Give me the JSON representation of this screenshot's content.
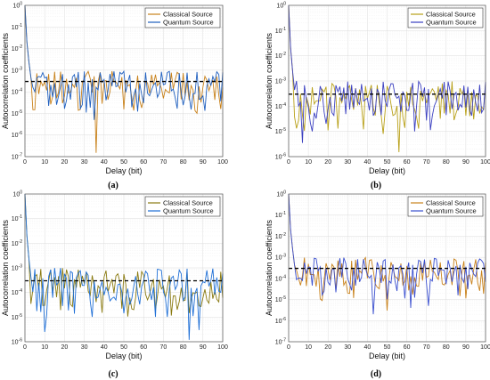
{
  "chart_data": [
    {
      "type": "line",
      "panel_label": "(a)",
      "xlabel": "Delay (bit)",
      "ylabel": "Autocorrelation coefficients",
      "xlim": [
        0,
        100
      ],
      "ylim_exponent": [
        -7,
        0
      ],
      "yscale": "log",
      "grid": true,
      "legend": "top-right",
      "threshold": 0.0003,
      "x_ticks": [
        "0",
        "10",
        "20",
        "30",
        "40",
        "50",
        "60",
        "70",
        "80",
        "90",
        "100"
      ],
      "y_ticks": [
        "10^-7",
        "10^-6",
        "10^-5",
        "10^-4",
        "10^-3",
        "10^-2",
        "10^-1",
        "10^0"
      ],
      "series": [
        {
          "name": "Classical Source",
          "color": "#c8811a",
          "dips": [
            [
              36,
              1.5e-07
            ],
            [
              14,
              6e-05
            ],
            [
              70,
              5e-05
            ]
          ],
          "seed": 11
        },
        {
          "name": "Quantum Source",
          "color": "#1f5fbf",
          "dips": [
            [
              35,
              5e-06
            ],
            [
              21,
              4e-05
            ],
            [
              60,
              3e-05
            ]
          ],
          "seed": 23
        }
      ]
    },
    {
      "type": "line",
      "panel_label": "(b)",
      "xlabel": "Delay (bit)",
      "ylabel": "Autocorrelation coefficients",
      "xlim": [
        0,
        100
      ],
      "ylim_exponent": [
        -6,
        0
      ],
      "yscale": "log",
      "grid": true,
      "legend": "top-right",
      "threshold": 0.0003,
      "x_ticks": [
        "0",
        "10",
        "20",
        "30",
        "40",
        "50",
        "60",
        "70",
        "80",
        "90",
        "100"
      ],
      "y_ticks": [
        "10^-6",
        "10^-5",
        "10^-4",
        "10^-3",
        "10^-2",
        "10^-1",
        "10^0"
      ],
      "series": [
        {
          "name": "Classical Source",
          "color": "#b8a018",
          "dips": [
            [
              56,
              1.5e-06
            ],
            [
              38,
              1.2e-05
            ],
            [
              48,
              8e-06
            ]
          ],
          "seed": 31
        },
        {
          "name": "Quantum Source",
          "color": "#3a3fc0",
          "dips": [
            [
              7,
              3.5e-06
            ],
            [
              19,
              2e-05
            ],
            [
              64,
              1e-05
            ]
          ],
          "seed": 47
        }
      ]
    },
    {
      "type": "line",
      "panel_label": "(c)",
      "xlabel": "Delay (bit)",
      "ylabel": "Autocorrelation coefficients",
      "xlim": [
        0,
        100
      ],
      "ylim_exponent": [
        -6,
        0
      ],
      "yscale": "log",
      "grid": true,
      "legend": "top-right",
      "threshold": 0.0003,
      "x_ticks": [
        "0",
        "10",
        "20",
        "30",
        "40",
        "50",
        "60",
        "70",
        "80",
        "90",
        "100"
      ],
      "y_ticks": [
        "10^-6",
        "10^-5",
        "10^-4",
        "10^-3",
        "10^-2",
        "10^-1",
        "10^0"
      ],
      "series": [
        {
          "name": "Classical Source",
          "color": "#8a7a10",
          "dips": [
            [
              39,
              1.5e-05
            ],
            [
              55,
              2e-05
            ],
            [
              66,
              2e-05
            ]
          ],
          "seed": 53
        },
        {
          "name": "Quantum Source",
          "color": "#1f6fd6",
          "dips": [
            [
              10,
              2.5e-06
            ],
            [
              83,
              1.2e-06
            ],
            [
              88,
              3e-06
            ]
          ],
          "seed": 67
        }
      ]
    },
    {
      "type": "line",
      "panel_label": "(d)",
      "xlabel": "Delay (bit)",
      "ylabel": "Autocorrelation coefficients",
      "xlim": [
        0,
        100
      ],
      "ylim_exponent": [
        -7,
        0
      ],
      "yscale": "log",
      "grid": true,
      "legend": "top-right",
      "threshold": 0.0003,
      "x_ticks": [
        "0",
        "10",
        "20",
        "30",
        "40",
        "50",
        "60",
        "70",
        "80",
        "90",
        "100"
      ],
      "y_ticks": [
        "10^-7",
        "10^-6",
        "10^-5",
        "10^-4",
        "10^-3",
        "10^-2",
        "10^-1",
        "10^0"
      ],
      "series": [
        {
          "name": "Classical Source",
          "color": "#c8811a",
          "dips": [
            [
              17,
              9e-06
            ],
            [
              50,
              3e-06
            ],
            [
              30,
              2e-05
            ]
          ],
          "seed": 71
        },
        {
          "name": "Quantum Source",
          "color": "#3a4fcf",
          "dips": [
            [
              43,
              2e-06
            ],
            [
              62,
              4e-06
            ],
            [
              71,
              5e-06
            ]
          ],
          "seed": 89
        }
      ]
    }
  ]
}
